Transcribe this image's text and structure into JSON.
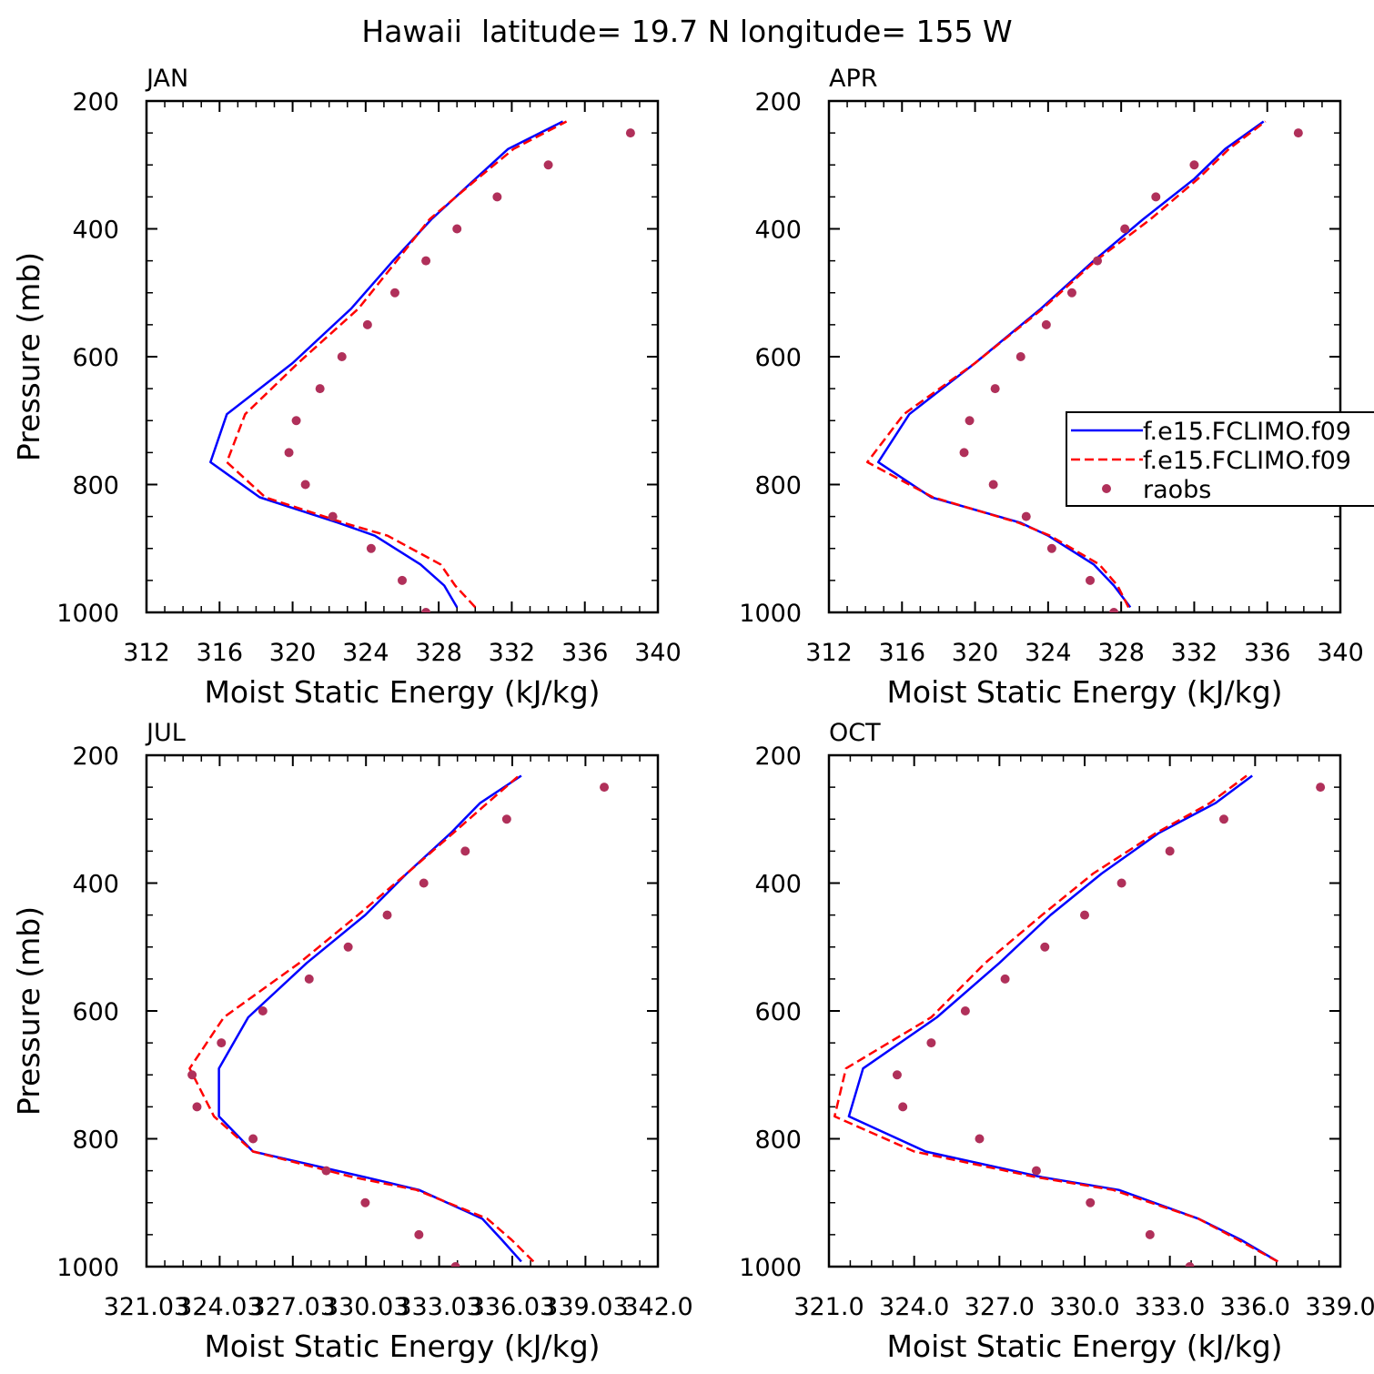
{
  "page_title": "Hawaii  latitude= 19.7 N longitude= 155 W",
  "colors": {
    "model_a": "#0000ff",
    "model_b": "#ff0000",
    "raobs": "#b0305a",
    "axis": "#000000"
  },
  "chart_data": [
    {
      "type": "line",
      "title": "JAN",
      "xlabel": "Moist Static Energy (kJ/kg)",
      "ylabel": "Pressure (mb)",
      "xlim": [
        312,
        340
      ],
      "ylim": [
        1000,
        200
      ],
      "x_ticks": [
        312,
        316,
        320,
        324,
        328,
        332,
        336,
        340
      ],
      "x_tick_labels": [
        "312",
        "316",
        "320",
        "324",
        "328",
        "332",
        "336",
        "340"
      ],
      "y_ticks": [
        200,
        400,
        600,
        800,
        1000
      ],
      "y_tick_labels": [
        "200",
        "400",
        "600",
        "800",
        "1000"
      ],
      "pressure_levels": [
        992,
        958,
        925,
        880,
        860,
        820,
        765,
        690,
        610,
        525,
        450,
        385,
        322,
        275,
        232
      ],
      "raobs_levels": [
        1000,
        950,
        900,
        850,
        800,
        750,
        700,
        650,
        600,
        550,
        500,
        450,
        400,
        350,
        300,
        250
      ],
      "series": [
        {
          "name": "f.e15.FCLIMO.f09",
          "style": "solid",
          "values": [
            329.0,
            328.3,
            327.0,
            324.5,
            322.5,
            318.2,
            315.5,
            316.4,
            320.0,
            323.2,
            325.5,
            327.6,
            330.0,
            331.8,
            334.8
          ]
        },
        {
          "name": "f.e15.FCLIMO.f09",
          "style": "dashed",
          "values": [
            330.0,
            328.9,
            328.1,
            325.2,
            322.8,
            318.5,
            316.4,
            317.4,
            320.3,
            323.6,
            325.7,
            327.5,
            330.1,
            332.1,
            335.0
          ]
        },
        {
          "name": "raobs",
          "style": "dots",
          "values": [
            327.3,
            326.0,
            324.3,
            322.2,
            320.7,
            319.8,
            320.2,
            321.5,
            322.7,
            324.1,
            325.6,
            327.3,
            329.0,
            331.2,
            334.0,
            338.5
          ]
        }
      ]
    },
    {
      "type": "line",
      "title": "APR",
      "xlabel": "Moist Static Energy (kJ/kg)",
      "ylabel": "",
      "xlim": [
        312,
        340
      ],
      "ylim": [
        1000,
        200
      ],
      "x_ticks": [
        312,
        316,
        320,
        324,
        328,
        332,
        336,
        340
      ],
      "x_tick_labels": [
        "312",
        "316",
        "320",
        "324",
        "328",
        "332",
        "336",
        "340"
      ],
      "y_ticks": [
        200,
        400,
        600,
        800,
        1000
      ],
      "y_tick_labels": [
        "200",
        "400",
        "600",
        "800",
        "1000"
      ],
      "pressure_levels": [
        992,
        958,
        925,
        880,
        860,
        820,
        765,
        690,
        610,
        525,
        450,
        385,
        322,
        275,
        232
      ],
      "raobs_levels": [
        1000,
        950,
        900,
        850,
        800,
        750,
        700,
        650,
        600,
        550,
        500,
        450,
        400,
        350,
        300,
        250
      ],
      "series": [
        {
          "name": "f.e15.FCLIMO.f09",
          "style": "solid",
          "values": [
            328.5,
            327.6,
            326.5,
            324.0,
            322.5,
            317.6,
            314.7,
            316.4,
            320.0,
            323.6,
            326.5,
            329.2,
            332.0,
            333.7,
            335.8
          ]
        },
        {
          "name": "f.e15.FCLIMO.f09",
          "style": "dashed",
          "values": [
            328.4,
            327.8,
            326.8,
            324.1,
            322.4,
            317.7,
            314.1,
            316.1,
            320.0,
            323.7,
            326.6,
            329.6,
            332.2,
            333.9,
            335.9
          ]
        },
        {
          "name": "raobs",
          "style": "dots",
          "values": [
            327.6,
            326.3,
            324.2,
            322.8,
            321.0,
            319.4,
            319.7,
            321.1,
            322.5,
            323.9,
            325.3,
            326.7,
            328.2,
            329.9,
            332.0,
            337.7
          ]
        }
      ]
    },
    {
      "type": "line",
      "title": "JUL",
      "xlabel": "Moist Static Energy (kJ/kg)",
      "ylabel": "Pressure (mb)",
      "xlim": [
        321.03,
        342.0
      ],
      "ylim": [
        1000,
        200
      ],
      "x_ticks": [
        321.03,
        324.03,
        327.03,
        330.03,
        333.03,
        336.03,
        339.03,
        342.0
      ],
      "x_tick_labels": [
        "321.03",
        "324.03",
        "327.03",
        "330.03",
        "333.03",
        "336.03",
        "339.03",
        "342.0"
      ],
      "y_ticks": [
        200,
        400,
        600,
        800,
        1000
      ],
      "y_tick_labels": [
        "200",
        "400",
        "600",
        "800",
        "1000"
      ],
      "pressure_levels": [
        992,
        958,
        925,
        880,
        860,
        820,
        765,
        690,
        610,
        525,
        450,
        385,
        322,
        275,
        232
      ],
      "raobs_levels": [
        1000,
        950,
        900,
        850,
        800,
        750,
        700,
        650,
        600,
        550,
        500,
        450,
        400,
        350,
        300,
        250
      ],
      "series": [
        {
          "name": "f.e15.FCLIMO.f09",
          "style": "solid",
          "values": [
            336.4,
            335.6,
            334.8,
            332.2,
            330.0,
            325.4,
            324.0,
            324.0,
            325.2,
            327.6,
            330.0,
            331.7,
            333.5,
            334.7,
            336.4
          ]
        },
        {
          "name": "f.e15.FCLIMO.f09",
          "style": "dashed",
          "values": [
            336.9,
            336.0,
            335.0,
            332.1,
            329.5,
            325.4,
            323.8,
            322.8,
            324.2,
            327.3,
            329.7,
            331.7,
            333.6,
            335.0,
            336.3
          ]
        },
        {
          "name": "raobs",
          "style": "dots",
          "values": [
            333.7,
            332.2,
            330.0,
            328.4,
            325.4,
            323.1,
            322.9,
            324.1,
            325.8,
            327.7,
            329.3,
            330.9,
            332.4,
            334.1,
            335.8,
            339.8
          ]
        }
      ]
    },
    {
      "type": "line",
      "title": "OCT",
      "xlabel": "Moist Static Energy (kJ/kg)",
      "ylabel": "",
      "xlim": [
        321.0,
        339.0
      ],
      "ylim": [
        1000,
        200
      ],
      "x_ticks": [
        321.0,
        324.0,
        327.0,
        330.0,
        333.0,
        336.0,
        339.0
      ],
      "x_tick_labels": [
        "321.0",
        "324.0",
        "327.0",
        "330.0",
        "333.0",
        "336.0",
        "339.0"
      ],
      "y_ticks": [
        200,
        400,
        600,
        800,
        1000
      ],
      "y_tick_labels": [
        "200",
        "400",
        "600",
        "800",
        "1000"
      ],
      "pressure_levels": [
        992,
        958,
        925,
        880,
        860,
        820,
        765,
        690,
        610,
        525,
        450,
        385,
        322,
        275,
        232
      ],
      "raobs_levels": [
        1000,
        950,
        900,
        850,
        800,
        750,
        700,
        650,
        600,
        550,
        500,
        450,
        400,
        350,
        300,
        250
      ],
      "series": [
        {
          "name": "f.e15.FCLIMO.f09",
          "style": "solid",
          "values": [
            336.8,
            335.5,
            334.0,
            331.2,
            328.5,
            324.4,
            321.7,
            322.2,
            324.8,
            327.0,
            328.8,
            330.6,
            332.6,
            334.6,
            335.9
          ]
        },
        {
          "name": "f.e15.FCLIMO.f09",
          "style": "dashed",
          "values": [
            336.8,
            335.4,
            334.0,
            331.0,
            328.3,
            324.0,
            321.2,
            321.6,
            324.6,
            326.5,
            328.5,
            330.3,
            332.5,
            334.4,
            335.7
          ]
        },
        {
          "name": "raobs",
          "style": "dots",
          "values": [
            333.7,
            332.3,
            330.2,
            328.3,
            326.3,
            323.6,
            323.4,
            324.6,
            325.8,
            327.2,
            328.6,
            330.0,
            331.3,
            333.0,
            334.9,
            338.3
          ]
        }
      ]
    }
  ],
  "legend": {
    "entries": [
      {
        "label": "f.e15.FCLIMO.f09",
        "style": "solid"
      },
      {
        "label": "f.e15.FCLIMO.f09",
        "style": "dashed"
      },
      {
        "label": "raobs",
        "style": "dots"
      }
    ]
  }
}
